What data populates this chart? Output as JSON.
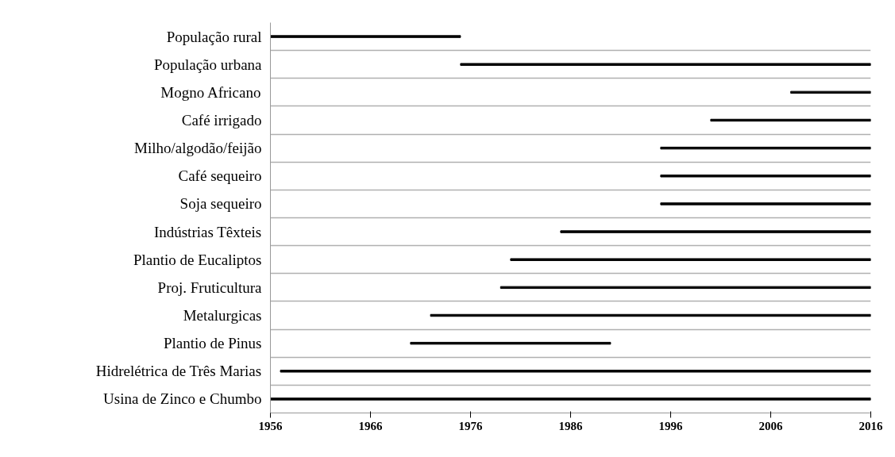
{
  "chart_data": {
    "type": "bar",
    "orientation": "horizontal",
    "categories": [
      "População rural",
      "População urbana",
      "Mogno Africano",
      "Café irrigado",
      "Milho/algodão/feijão",
      "Café sequeiro",
      "Soja sequeiro",
      "Indústrias Têxteis",
      "Plantio de Eucaliptos",
      "Proj. Fruticultura",
      "Metalurgicas",
      "Plantio de Pinus",
      "Hidrelétrica de Três Marias",
      "Usina de Zinco e Chumbo"
    ],
    "base": [
      1956,
      1975,
      2008,
      2000,
      1995,
      1995,
      1995,
      1985,
      1980,
      1979,
      1972,
      1970,
      1957,
      1956
    ],
    "values": [
      19,
      41,
      8,
      16,
      21,
      21,
      21,
      31,
      36,
      37,
      44,
      20,
      59,
      60
    ],
    "color": "#000000",
    "xlim": [
      1956,
      2016
    ],
    "xticks": [
      1956,
      1966,
      1976,
      1986,
      1996,
      2006,
      2016
    ],
    "grid": "y"
  }
}
